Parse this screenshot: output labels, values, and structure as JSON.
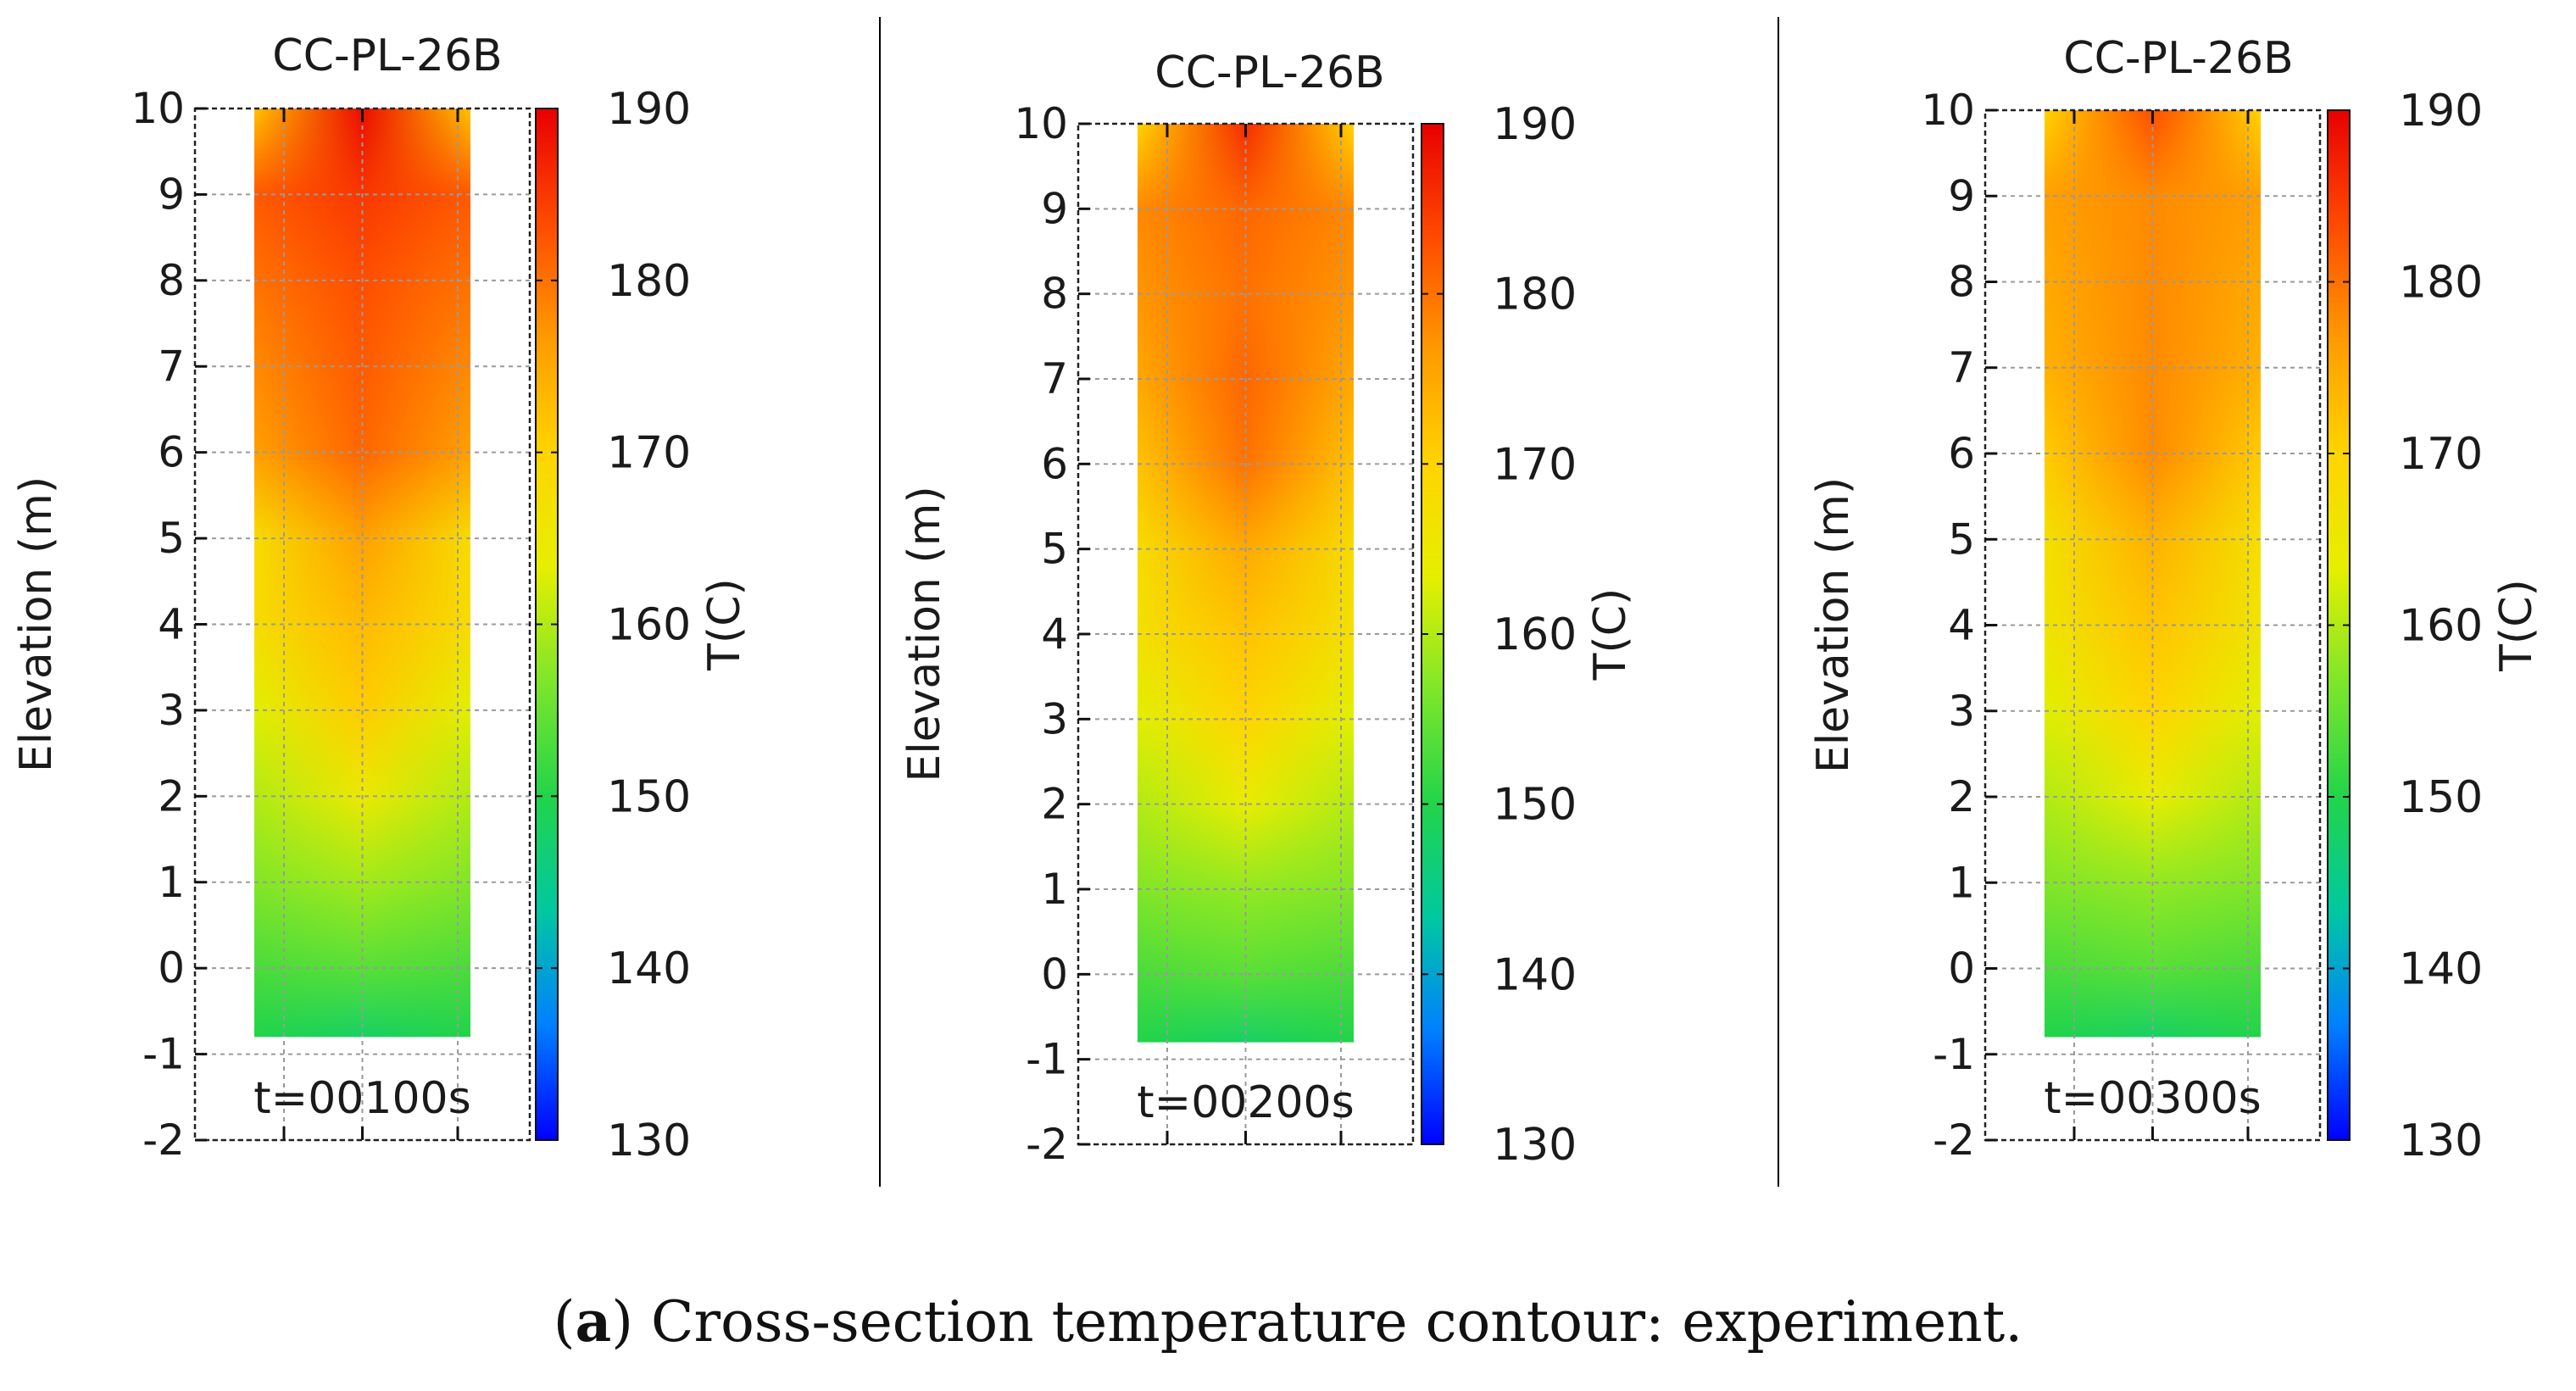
{
  "figure": {
    "caption_label": "a",
    "caption_text": "Cross-section temperature contour: experiment."
  },
  "colorscale": {
    "stops": [
      "#0000ff",
      "#0080ff",
      "#00c8a0",
      "#22d44a",
      "#7ee62a",
      "#e6ef00",
      "#ffd400",
      "#ff9a00",
      "#ff4a00",
      "#e80000"
    ]
  },
  "chart_data": [
    {
      "type": "heatmap",
      "title": "CC-PL-26B",
      "ylabel": "Elevation (m)",
      "ylim": [
        -2,
        10
      ],
      "yticks": [
        "10",
        "9",
        "8",
        "7",
        "6",
        "5",
        "4",
        "3",
        "2",
        "1",
        "0",
        "-1",
        "-2"
      ],
      "y_range_of_data": [
        -0.8,
        10
      ],
      "annotation": "t=00100s",
      "colorbar": {
        "label": "T(C)",
        "range": [
          130,
          190
        ],
        "ticks": [
          "190",
          "180",
          "170",
          "160",
          "150",
          "140",
          "130"
        ]
      },
      "temperature_profile": [
        {
          "elevation": 10,
          "center": 189,
          "edge": 172
        },
        {
          "elevation": 9,
          "center": 185,
          "edge": 182
        },
        {
          "elevation": 8,
          "center": 183,
          "edge": 180
        },
        {
          "elevation": 7,
          "center": 182,
          "edge": 178
        },
        {
          "elevation": 6,
          "center": 181,
          "edge": 176
        },
        {
          "elevation": 5,
          "center": 176,
          "edge": 168
        },
        {
          "elevation": 4,
          "center": 173,
          "edge": 168
        },
        {
          "elevation": 3,
          "center": 171,
          "edge": 163
        },
        {
          "elevation": 2,
          "center": 165,
          "edge": 160
        },
        {
          "elevation": 1,
          "center": 159,
          "edge": 157
        },
        {
          "elevation": 0,
          "center": 154,
          "edge": 153
        },
        {
          "elevation": -0.8,
          "center": 148,
          "edge": 150
        }
      ]
    },
    {
      "type": "heatmap",
      "title": "CC-PL-26B",
      "ylabel": "Elevation (m)",
      "ylim": [
        -2,
        10
      ],
      "yticks": [
        "10",
        "9",
        "8",
        "7",
        "6",
        "5",
        "4",
        "3",
        "2",
        "1",
        "0",
        "-1",
        "-2"
      ],
      "y_range_of_data": [
        -0.8,
        10
      ],
      "annotation": "t=00200s",
      "colorbar": {
        "label": "T(C)",
        "range": [
          130,
          190
        ],
        "ticks": [
          "190",
          "180",
          "170",
          "160",
          "150",
          "140",
          "130"
        ]
      },
      "temperature_profile": [
        {
          "elevation": 10,
          "center": 186,
          "edge": 170
        },
        {
          "elevation": 9,
          "center": 181,
          "edge": 178
        },
        {
          "elevation": 8,
          "center": 180,
          "edge": 177
        },
        {
          "elevation": 7,
          "center": 181,
          "edge": 175
        },
        {
          "elevation": 6,
          "center": 180,
          "edge": 172
        },
        {
          "elevation": 5,
          "center": 175,
          "edge": 168
        },
        {
          "elevation": 4,
          "center": 172,
          "edge": 167
        },
        {
          "elevation": 3,
          "center": 170,
          "edge": 163
        },
        {
          "elevation": 2,
          "center": 164,
          "edge": 160
        },
        {
          "elevation": 1,
          "center": 158,
          "edge": 157
        },
        {
          "elevation": 0,
          "center": 154,
          "edge": 153
        },
        {
          "elevation": -0.8,
          "center": 148,
          "edge": 150
        }
      ]
    },
    {
      "type": "heatmap",
      "title": "CC-PL-26B",
      "ylabel": "Elevation (m)",
      "ylim": [
        -2,
        10
      ],
      "yticks": [
        "10",
        "9",
        "8",
        "7",
        "6",
        "5",
        "4",
        "3",
        "2",
        "1",
        "0",
        "-1",
        "-2"
      ],
      "y_range_of_data": [
        -0.8,
        10
      ],
      "annotation": "t=00300s",
      "colorbar": {
        "label": "T(C)",
        "range": [
          130,
          190
        ],
        "ticks": [
          "190",
          "180",
          "170",
          "160",
          "150",
          "140",
          "130"
        ]
      },
      "temperature_profile": [
        {
          "elevation": 10,
          "center": 183,
          "edge": 170
        },
        {
          "elevation": 9,
          "center": 178,
          "edge": 176
        },
        {
          "elevation": 8,
          "center": 178,
          "edge": 175
        },
        {
          "elevation": 7,
          "center": 178,
          "edge": 174
        },
        {
          "elevation": 6,
          "center": 178,
          "edge": 171
        },
        {
          "elevation": 5,
          "center": 174,
          "edge": 167
        },
        {
          "elevation": 4,
          "center": 172,
          "edge": 166
        },
        {
          "elevation": 3,
          "center": 170,
          "edge": 163
        },
        {
          "elevation": 2,
          "center": 164,
          "edge": 160
        },
        {
          "elevation": 1,
          "center": 158,
          "edge": 157
        },
        {
          "elevation": 0,
          "center": 154,
          "edge": 153
        },
        {
          "elevation": -0.8,
          "center": 148,
          "edge": 150
        }
      ]
    }
  ]
}
